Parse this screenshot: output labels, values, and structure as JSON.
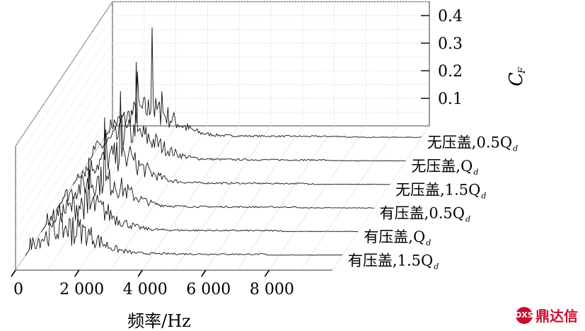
{
  "chart_data": {
    "type": "line",
    "style": "3d-waterfall",
    "xlabel": "频率/Hz",
    "zlabel_main": "C",
    "zlabel_sub": "F",
    "x_ticks": [
      "0",
      "2 000",
      "4 000",
      "6 000",
      "8 000"
    ],
    "xlim": [
      0,
      10000
    ],
    "z_ticks": [
      "0.1",
      "0.2",
      "0.3",
      "0.4"
    ],
    "zlim": [
      0,
      0.45
    ],
    "grid": true,
    "series": [
      {
        "name": "无压盖,0.5Q",
        "subscript": "d",
        "peak_x": 1500,
        "peak_value": 0.4,
        "peak2_value": 0.24
      },
      {
        "name": "无压盖,Q",
        "subscript": "d",
        "peak_x": 1500,
        "peak_value": 0.36,
        "peak2_value": 0.17
      },
      {
        "name": "无压盖,1.5Q",
        "subscript": "d",
        "peak_x": 1500,
        "peak_value": 0.34,
        "peak2_value": 0.2
      },
      {
        "name": "有压盖,0.5Q",
        "subscript": "d",
        "peak_x": 1500,
        "peak_value": 0.33,
        "peak2_value": 0.14
      },
      {
        "name": "有压盖,Q",
        "subscript": "d",
        "peak_x": 1500,
        "peak_value": 0.27,
        "peak2_value": 0.11
      },
      {
        "name": "有压盖,1.5Q",
        "subscript": "d",
        "peak_x": 1500,
        "peak_value": 0.14,
        "peak2_value": 0.06
      }
    ]
  },
  "watermark": {
    "logo_text": "DXS",
    "text": "鼎达信"
  }
}
